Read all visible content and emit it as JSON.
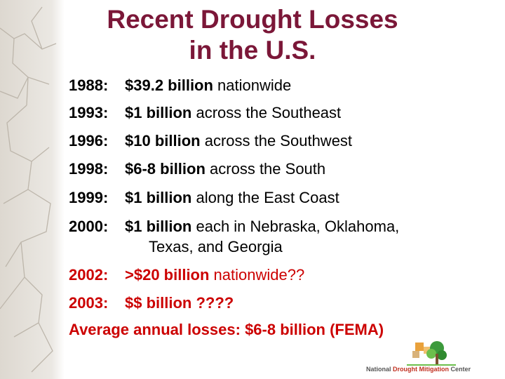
{
  "title_lines": [
    "Recent Drought Losses",
    "in the U.S."
  ],
  "items": [
    {
      "year": "1988:",
      "amount": "$39.2 billion",
      "rest": " nationwide"
    },
    {
      "year": "1993:",
      "amount": "$1 billion",
      "rest": " across the Southeast"
    },
    {
      "year": "1996:",
      "amount": "$10 billion",
      "rest": " across the Southwest"
    },
    {
      "year": "1998:",
      "amount": "$6-8 billion",
      "rest": " across the South"
    },
    {
      "year": "1999:",
      "amount": "$1 billion",
      "rest": " along the East Coast"
    },
    {
      "year": "2000:",
      "amount": "$1 billion",
      "rest": " each in Nebraska, Oklahoma,",
      "continuation": "Texas, and Georgia"
    },
    {
      "year": "2002:",
      "amount": ">$20 billion",
      "rest": " nationwide??"
    },
    {
      "year": "2003:",
      "amount": "$$ billion ????"
    }
  ],
  "summary": "Average annual losses:  $6-8 billion (FEMA)",
  "logo": {
    "parts": [
      "National",
      "Drought Mitigation",
      "Center"
    ]
  }
}
